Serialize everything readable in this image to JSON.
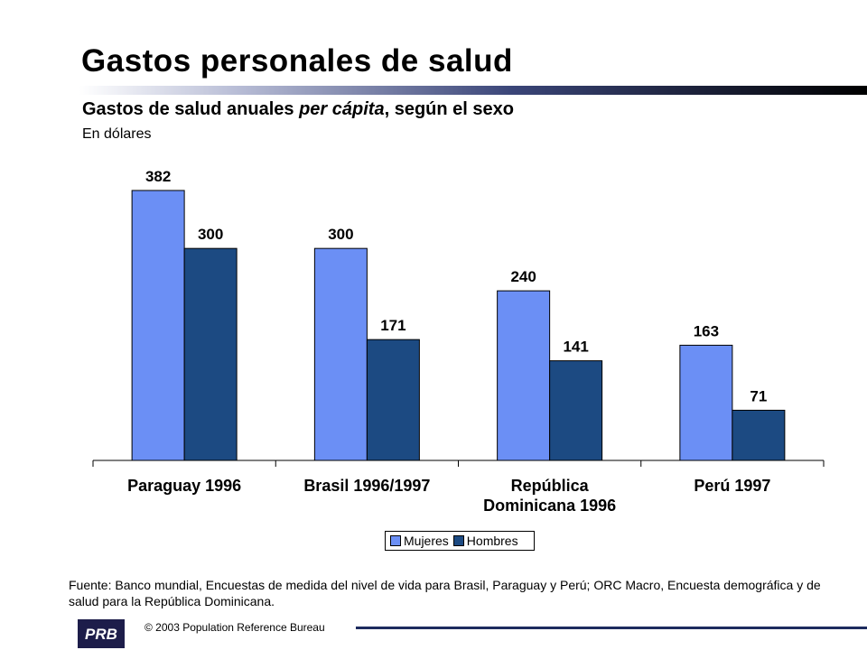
{
  "header": {
    "title": "Gastos personales de salud",
    "subtitle_main": "Gastos de salud anuales ",
    "subtitle_italic": "per cápita",
    "subtitle_tail": ", según el sexo",
    "unit": "En dólares"
  },
  "chart_data": {
    "type": "bar",
    "categories": [
      [
        "Paraguay 1996"
      ],
      [
        "Brasil 1996/1997"
      ],
      [
        "República",
        "Dominicana  1996"
      ],
      [
        "Perú 1997"
      ]
    ],
    "series": [
      {
        "name": "Mujeres",
        "values": [
          382,
          300,
          240,
          163
        ],
        "color": "#6b8ff5"
      },
      {
        "name": "Hombres",
        "values": [
          300,
          171,
          141,
          71
        ],
        "color": "#1c4a82"
      }
    ],
    "ylim": [
      0,
      400
    ],
    "grid": false,
    "legend_position": "bottom-center",
    "xlabel": "",
    "ylabel": ""
  },
  "legend": {
    "mujeres": "Mujeres",
    "hombres": "Hombres"
  },
  "footer": {
    "source": "Fuente: Banco mundial, Encuestas de medida del nivel de vida para Brasil, Paraguay y Perú; ORC Macro, Encuesta demográfica y de salud para la República Dominicana.",
    "copyright": "© 2003  Population Reference Bureau",
    "logo_text": "PRB",
    "logo_icon": "prb-logo-icon"
  },
  "colors": {
    "mujeres": "#6b8ff5",
    "hombres": "#1c4a82",
    "footer_rule": "#1d2b5e"
  }
}
